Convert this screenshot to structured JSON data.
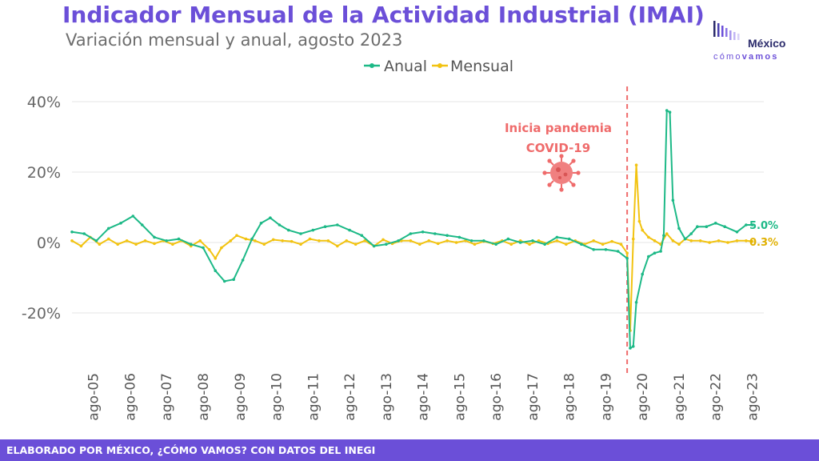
{
  "header": {
    "title": "Indicador Mensual de la Actividad Industrial (IMAI)",
    "subtitle": "Variación mensual y anual, agosto 2023"
  },
  "logo": {
    "line1": "México",
    "line2a": "cómo",
    "line2b": "vamos"
  },
  "footer": {
    "text": "ELABORADO POR MÉXICO, ¿CÓMO VAMOS? CON DATOS DEL INEGI"
  },
  "colors": {
    "anual": "#1db987",
    "mensual": "#f2c311",
    "annotation": "#ef6b6b",
    "brand": "#6b4fd8"
  },
  "chart_data": {
    "type": "line",
    "legend": [
      "Anual",
      "Mensual"
    ],
    "legend_position": "top-center",
    "yticks": [
      "40%",
      "20%",
      "0%",
      "-20%"
    ],
    "ylim": [
      -35,
      45
    ],
    "grid": true,
    "xticks": [
      "ago-05",
      "ago-06",
      "ago-07",
      "ago-08",
      "ago-09",
      "ago-10",
      "ago-11",
      "ago-12",
      "ago-13",
      "ago-14",
      "ago-15",
      "ago-16",
      "ago-17",
      "ago-18",
      "ago-19",
      "ago-20",
      "ago-21",
      "ago-22",
      "ago-23"
    ],
    "annotation": {
      "line1": "Inicia pandemia",
      "line2": "COVID-19",
      "date": "2020-03",
      "icon": "virus-icon"
    },
    "end_labels": {
      "anual": "5.0%",
      "mensual": "0.3%"
    },
    "series": [
      {
        "name": "Anual",
        "points": [
          [
            "2005-01",
            3.0
          ],
          [
            "2005-05",
            2.5
          ],
          [
            "2005-09",
            0.5
          ],
          [
            "2006-01",
            4.0
          ],
          [
            "2006-05",
            5.5
          ],
          [
            "2006-09",
            7.5
          ],
          [
            "2006-12",
            5.0
          ],
          [
            "2007-04",
            1.5
          ],
          [
            "2007-08",
            0.5
          ],
          [
            "2007-12",
            1.0
          ],
          [
            "2008-04",
            -0.5
          ],
          [
            "2008-08",
            -1.5
          ],
          [
            "2008-12",
            -8.0
          ],
          [
            "2009-03",
            -11.0
          ],
          [
            "2009-06",
            -10.5
          ],
          [
            "2009-09",
            -5.0
          ],
          [
            "2009-12",
            1.0
          ],
          [
            "2010-03",
            5.5
          ],
          [
            "2010-06",
            7.0
          ],
          [
            "2010-09",
            5.0
          ],
          [
            "2010-12",
            3.5
          ],
          [
            "2011-04",
            2.5
          ],
          [
            "2011-08",
            3.5
          ],
          [
            "2011-12",
            4.5
          ],
          [
            "2012-04",
            5.0
          ],
          [
            "2012-08",
            3.5
          ],
          [
            "2012-12",
            2.0
          ],
          [
            "2013-04",
            -1.0
          ],
          [
            "2013-08",
            -0.5
          ],
          [
            "2013-12",
            0.5
          ],
          [
            "2014-04",
            2.5
          ],
          [
            "2014-08",
            3.0
          ],
          [
            "2014-12",
            2.5
          ],
          [
            "2015-04",
            2.0
          ],
          [
            "2015-08",
            1.5
          ],
          [
            "2015-12",
            0.5
          ],
          [
            "2016-04",
            0.5
          ],
          [
            "2016-08",
            -0.5
          ],
          [
            "2016-12",
            1.0
          ],
          [
            "2017-04",
            0.0
          ],
          [
            "2017-08",
            0.5
          ],
          [
            "2017-12",
            -0.5
          ],
          [
            "2018-04",
            1.5
          ],
          [
            "2018-08",
            1.0
          ],
          [
            "2018-12",
            -0.5
          ],
          [
            "2019-04",
            -2.0
          ],
          [
            "2019-08",
            -2.0
          ],
          [
            "2019-12",
            -2.5
          ],
          [
            "2020-03",
            -4.5
          ],
          [
            "2020-04",
            -30.0
          ],
          [
            "2020-05",
            -29.5
          ],
          [
            "2020-06",
            -17.0
          ],
          [
            "2020-08",
            -9.0
          ],
          [
            "2020-10",
            -4.0
          ],
          [
            "2020-12",
            -3.0
          ],
          [
            "2021-02",
            -2.5
          ],
          [
            "2021-03",
            2.0
          ],
          [
            "2021-04",
            37.5
          ],
          [
            "2021-05",
            37.0
          ],
          [
            "2021-06",
            12.0
          ],
          [
            "2021-08",
            4.0
          ],
          [
            "2021-10",
            1.0
          ],
          [
            "2021-12",
            2.5
          ],
          [
            "2022-02",
            4.5
          ],
          [
            "2022-05",
            4.5
          ],
          [
            "2022-08",
            5.5
          ],
          [
            "2022-11",
            4.5
          ],
          [
            "2023-03",
            3.0
          ],
          [
            "2023-06",
            5.0
          ],
          [
            "2023-08",
            5.0
          ]
        ]
      },
      {
        "name": "Mensual",
        "points": [
          [
            "2005-01",
            0.5
          ],
          [
            "2005-04",
            -1.0
          ],
          [
            "2005-07",
            1.5
          ],
          [
            "2005-10",
            -0.5
          ],
          [
            "2006-01",
            1.0
          ],
          [
            "2006-04",
            -0.5
          ],
          [
            "2006-07",
            0.5
          ],
          [
            "2006-10",
            -0.5
          ],
          [
            "2007-01",
            0.5
          ],
          [
            "2007-04",
            -0.3
          ],
          [
            "2007-07",
            0.5
          ],
          [
            "2007-10",
            -0.5
          ],
          [
            "2008-01",
            0.5
          ],
          [
            "2008-04",
            -1.0
          ],
          [
            "2008-07",
            0.5
          ],
          [
            "2008-10",
            -2.0
          ],
          [
            "2008-12",
            -4.5
          ],
          [
            "2009-02",
            -1.5
          ],
          [
            "2009-05",
            0.5
          ],
          [
            "2009-07",
            2.0
          ],
          [
            "2009-10",
            1.0
          ],
          [
            "2010-01",
            0.5
          ],
          [
            "2010-04",
            -0.5
          ],
          [
            "2010-07",
            0.8
          ],
          [
            "2010-10",
            0.5
          ],
          [
            "2011-01",
            0.3
          ],
          [
            "2011-04",
            -0.5
          ],
          [
            "2011-07",
            1.0
          ],
          [
            "2011-10",
            0.5
          ],
          [
            "2012-01",
            0.5
          ],
          [
            "2012-04",
            -1.0
          ],
          [
            "2012-07",
            0.5
          ],
          [
            "2012-10",
            -0.5
          ],
          [
            "2013-01",
            0.5
          ],
          [
            "2013-04",
            -1.0
          ],
          [
            "2013-07",
            0.8
          ],
          [
            "2013-10",
            -0.3
          ],
          [
            "2014-01",
            0.5
          ],
          [
            "2014-04",
            0.5
          ],
          [
            "2014-07",
            -0.5
          ],
          [
            "2014-10",
            0.5
          ],
          [
            "2015-01",
            -0.3
          ],
          [
            "2015-04",
            0.5
          ],
          [
            "2015-07",
            0.0
          ],
          [
            "2015-10",
            0.5
          ],
          [
            "2016-01",
            -0.5
          ],
          [
            "2016-04",
            0.3
          ],
          [
            "2016-07",
            -0.3
          ],
          [
            "2016-10",
            0.5
          ],
          [
            "2017-01",
            -0.5
          ],
          [
            "2017-04",
            0.5
          ],
          [
            "2017-07",
            -0.5
          ],
          [
            "2017-10",
            0.5
          ],
          [
            "2018-01",
            -0.3
          ],
          [
            "2018-04",
            0.5
          ],
          [
            "2018-07",
            -0.5
          ],
          [
            "2018-10",
            0.5
          ],
          [
            "2019-01",
            -0.5
          ],
          [
            "2019-04",
            0.5
          ],
          [
            "2019-07",
            -0.5
          ],
          [
            "2019-10",
            0.3
          ],
          [
            "2020-01",
            -0.5
          ],
          [
            "2020-03",
            -3.0
          ],
          [
            "2020-04",
            -25.0
          ],
          [
            "2020-05",
            1.0
          ],
          [
            "2020-06",
            22.0
          ],
          [
            "2020-07",
            6.0
          ],
          [
            "2020-08",
            3.5
          ],
          [
            "2020-10",
            1.5
          ],
          [
            "2020-12",
            0.5
          ],
          [
            "2021-02",
            -0.5
          ],
          [
            "2021-04",
            2.5
          ],
          [
            "2021-06",
            0.5
          ],
          [
            "2021-08",
            -0.5
          ],
          [
            "2021-10",
            1.0
          ],
          [
            "2021-12",
            0.5
          ],
          [
            "2022-03",
            0.5
          ],
          [
            "2022-06",
            0.0
          ],
          [
            "2022-09",
            0.5
          ],
          [
            "2022-12",
            0.0
          ],
          [
            "2023-03",
            0.5
          ],
          [
            "2023-06",
            0.5
          ],
          [
            "2023-08",
            0.3
          ]
        ]
      }
    ]
  }
}
